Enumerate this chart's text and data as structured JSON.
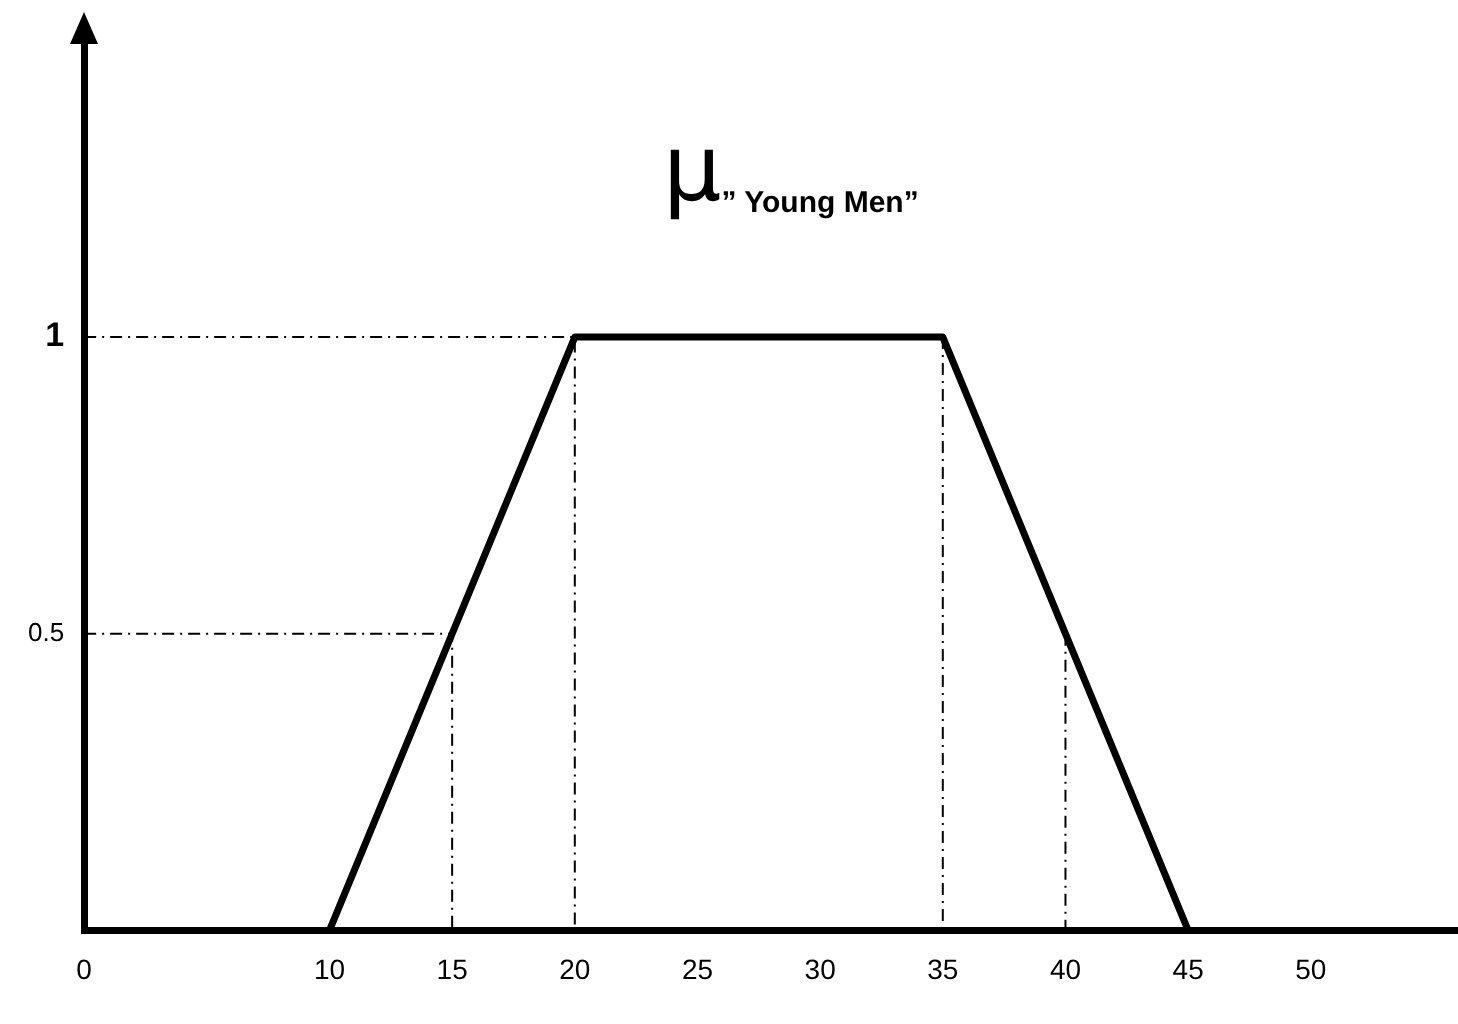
{
  "chart_data": {
    "type": "line",
    "title": "μ$_{” Young Men”}$",
    "xlim": [
      0,
      56
    ],
    "xticks": [
      0,
      10,
      15,
      20,
      25,
      30,
      35,
      40,
      45,
      50
    ],
    "ylim": [
      0,
      1.5
    ],
    "yticks": [
      0.5,
      1
    ],
    "grid": false,
    "legend": false,
    "marker": "none",
    "series": [
      {
        "color": "#000000",
        "line_style": "solid",
        "x": [
          0,
          10,
          20,
          35,
          45,
          56
        ],
        "values": [
          0,
          0,
          1,
          1,
          0,
          0
        ]
      },
      {
        "color": "#000000",
        "line_style": "dashed",
        "x": [
          0,
          20,
          20
        ],
        "values": [
          1,
          1,
          0
        ]
      },
      {
        "color": "#000000",
        "line_style": "dashed",
        "x": [
          0,
          15,
          15
        ],
        "values": [
          0.5,
          0.5,
          0
        ]
      },
      {
        "color": "#000000",
        "line_style": "dashed",
        "x": [
          35,
          35
        ],
        "values": [
          1,
          0
        ]
      },
      {
        "color": "#000000",
        "line_style": "dashed",
        "x": [
          40,
          40
        ],
        "values": [
          0.5,
          0
        ]
      }
    ]
  }
}
